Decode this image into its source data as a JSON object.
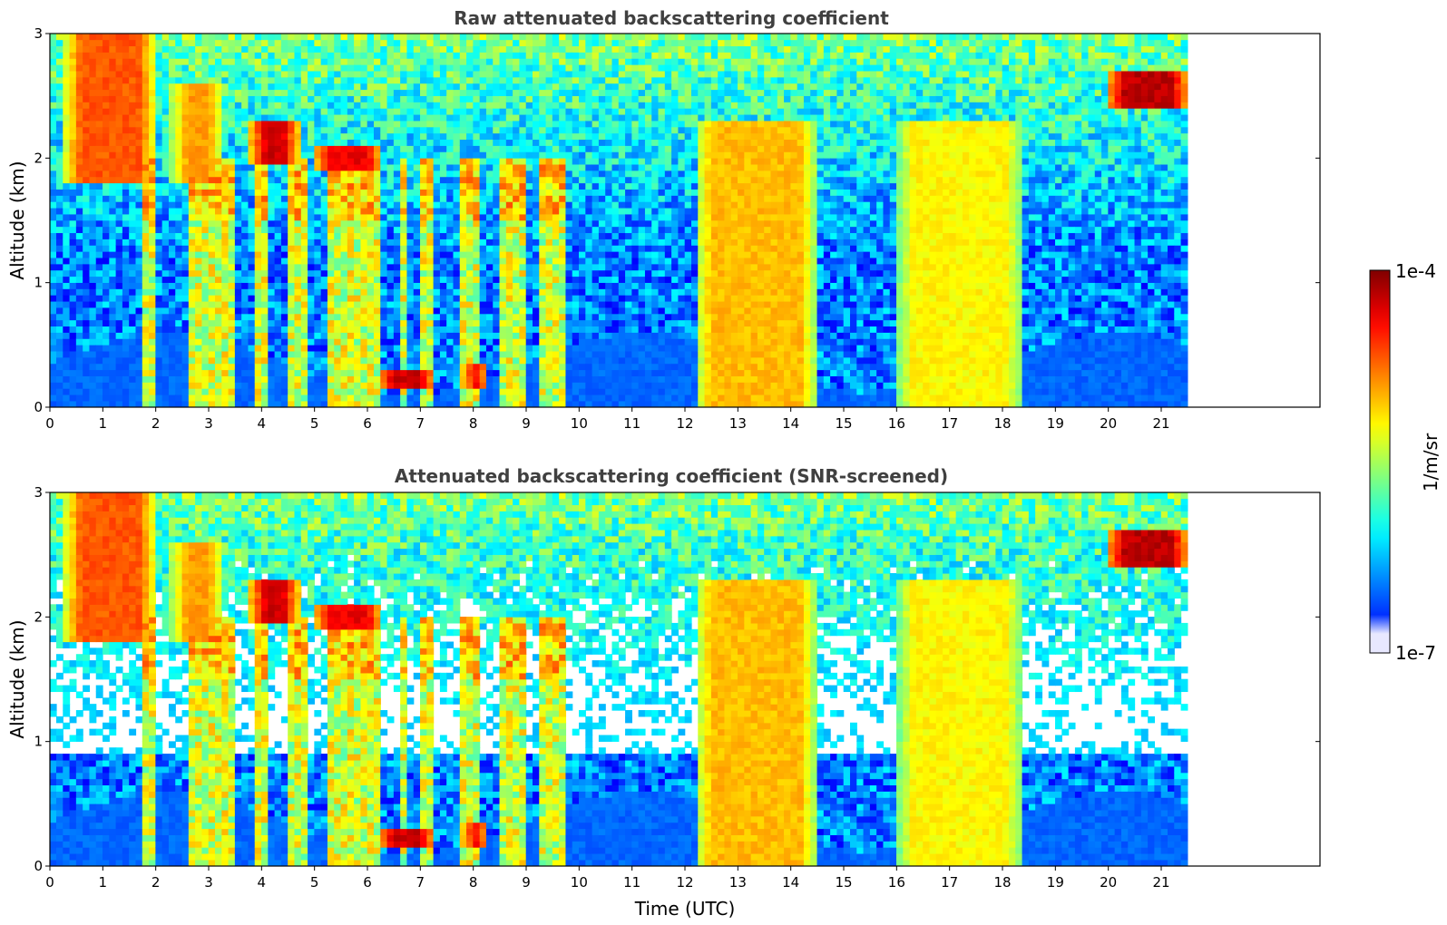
{
  "figure": {
    "colorbar": {
      "label": "1/m/sr",
      "max_label": "1e-4",
      "min_label": "1e-7",
      "scale": "log",
      "colormap": "jet",
      "colors": [
        "#ffffff",
        "#0000ff",
        "#0080ff",
        "#00e0ff",
        "#80ff80",
        "#ffff00",
        "#ff8000",
        "#ff0000",
        "#800000"
      ]
    },
    "xlabel": "Time (UTC)"
  },
  "chart_data": [
    {
      "type": "heatmap",
      "title": "Raw attenuated backscattering coefficient",
      "xlabel": "",
      "ylabel": "Altitude (km)",
      "xlim": [
        0,
        24
      ],
      "ylim": [
        0,
        3
      ],
      "x_ticks": [
        "0",
        "1",
        "2",
        "3",
        "4",
        "5",
        "6",
        "7",
        "8",
        "9",
        "10",
        "11",
        "12",
        "13",
        "14",
        "15",
        "16",
        "17",
        "18",
        "19",
        "20",
        "21"
      ],
      "y_ticks": [
        "0",
        "1",
        "2",
        "3"
      ],
      "data_extent_hours": [
        0,
        21.5
      ],
      "colorbar_range": [
        "1e-7",
        "1e-4"
      ],
      "cloud_layers": [
        {
          "t0": 0.3,
          "t1": 2.0,
          "z0": 1.8,
          "z1": 3.0,
          "level": 0.82
        },
        {
          "t0": 2.3,
          "t1": 3.3,
          "z0": 1.8,
          "z1": 2.6,
          "level": 0.75
        },
        {
          "t0": 3.8,
          "t1": 4.7,
          "z0": 1.95,
          "z1": 2.3,
          "level": 0.95
        },
        {
          "t0": 5.0,
          "t1": 6.3,
          "z0": 1.9,
          "z1": 2.1,
          "level": 0.92
        },
        {
          "t0": 6.2,
          "t1": 7.3,
          "z0": 0.15,
          "z1": 0.3,
          "level": 0.95
        },
        {
          "t0": 7.8,
          "t1": 8.3,
          "z0": 0.15,
          "z1": 0.35,
          "level": 0.95
        },
        {
          "t0": 12.2,
          "t1": 14.5,
          "z0": 0.0,
          "z1": 2.3,
          "level": 0.72
        },
        {
          "t0": 16.0,
          "t1": 18.4,
          "z0": 0.0,
          "z1": 2.3,
          "level": 0.66
        },
        {
          "t0": 20.0,
          "t1": 21.5,
          "z0": 2.4,
          "z1": 2.7,
          "level": 0.97
        }
      ]
    },
    {
      "type": "heatmap",
      "title": "Attenuated backscattering coefficient (SNR-screened)",
      "xlabel": "Time (UTC)",
      "ylabel": "Altitude (km)",
      "xlim": [
        0,
        24
      ],
      "ylim": [
        0,
        3
      ],
      "x_ticks": [
        "0",
        "1",
        "2",
        "3",
        "4",
        "5",
        "6",
        "7",
        "8",
        "9",
        "10",
        "11",
        "12",
        "13",
        "14",
        "15",
        "16",
        "17",
        "18",
        "19",
        "20",
        "21"
      ],
      "y_ticks": [
        "0",
        "1",
        "2",
        "3"
      ],
      "data_extent_hours": [
        0,
        21.5
      ],
      "colorbar_range": [
        "1e-7",
        "1e-4"
      ],
      "screening": "SNR",
      "screened_color": "#ffffff"
    }
  ]
}
